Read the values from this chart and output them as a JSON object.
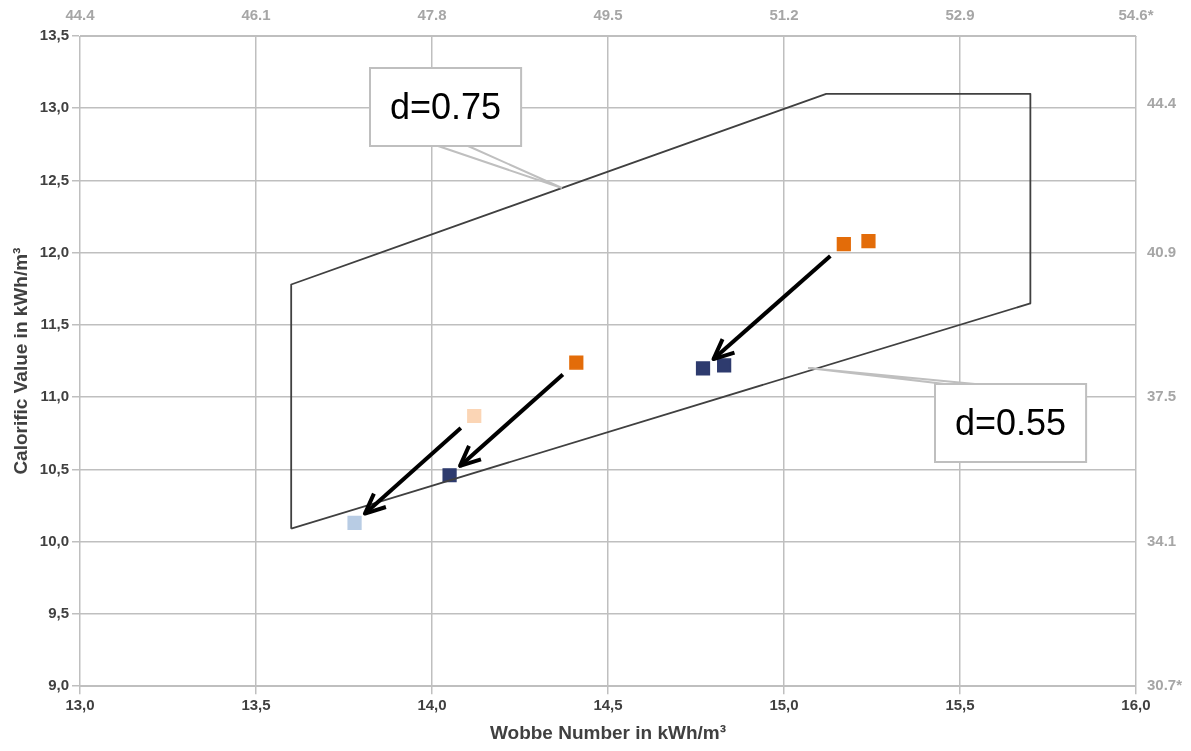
{
  "chart_data": {
    "type": "scatter",
    "xlabel": "Wobbe Number in kWh/m³",
    "ylabel": "Calorific Value in kWh/m³",
    "xlim": [
      13,
      16
    ],
    "xticks": [
      {
        "value": 13,
        "label": "13,0"
      },
      {
        "value": 13.5,
        "label": "13,5"
      },
      {
        "value": 14,
        "label": "14,0"
      },
      {
        "value": 14.5,
        "label": "14,5"
      },
      {
        "value": 15,
        "label": "15,0"
      },
      {
        "value": 15.5,
        "label": "15,5"
      },
      {
        "value": 16,
        "label": "16,0"
      }
    ],
    "ylim": [
      9,
      13.5
    ],
    "yticks": [
      {
        "value": 9,
        "label": "9,0"
      },
      {
        "value": 9.5,
        "label": "9,5"
      },
      {
        "value": 10,
        "label": "10,0"
      },
      {
        "value": 10.5,
        "label": "10,5"
      },
      {
        "value": 11,
        "label": "11,0"
      },
      {
        "value": 11.5,
        "label": "11,5"
      },
      {
        "value": 12,
        "label": "12,0"
      },
      {
        "value": 12.5,
        "label": "12,5"
      },
      {
        "value": 13,
        "label": "13,0"
      },
      {
        "value": 13.5,
        "label": "13,5"
      }
    ],
    "x2lim": [
      44.4,
      54.6
    ],
    "x2ticks": [
      44.4,
      46.1,
      47.8,
      49.5,
      51.2,
      52.9,
      {
        "value": 54.6,
        "label": "54.6*"
      }
    ],
    "y2lim": [
      30.7,
      46.0
    ],
    "y2ticks": [
      {
        "value": 30.7,
        "label": "30.7*"
      },
      34.1,
      37.5,
      40.9,
      44.4
    ],
    "grid": true,
    "legend": false,
    "marker": "square",
    "series": [
      {
        "type": "line",
        "marker": "none",
        "color": "#404040",
        "x": [
          13.6,
          13.6,
          15.12,
          15.7,
          15.7
        ],
        "values": [
          10.09,
          11.78,
          13.1,
          13.1,
          11.65
        ]
      },
      {
        "type": "line",
        "marker": "none",
        "color": "#404040",
        "x": [
          13.6,
          15.7
        ],
        "values": [
          10.09,
          11.65
        ]
      },
      {
        "color": "#e36c09",
        "x": [
          15.17,
          14.41,
          15.24
        ],
        "values": [
          12.06,
          11.24,
          12.08
        ]
      },
      {
        "color": "#2e3b6e",
        "x": [
          14.77,
          14.05,
          14.83
        ],
        "values": [
          11.2,
          10.46,
          11.22
        ]
      },
      {
        "color": "#fbd5b5",
        "x": [
          14.12
        ],
        "values": [
          10.87
        ]
      },
      {
        "color": "#b8cce4",
        "x": [
          13.78
        ],
        "values": [
          10.13
        ]
      }
    ],
    "annotations": [
      "d=0.75",
      "d=0.55"
    ]
  }
}
